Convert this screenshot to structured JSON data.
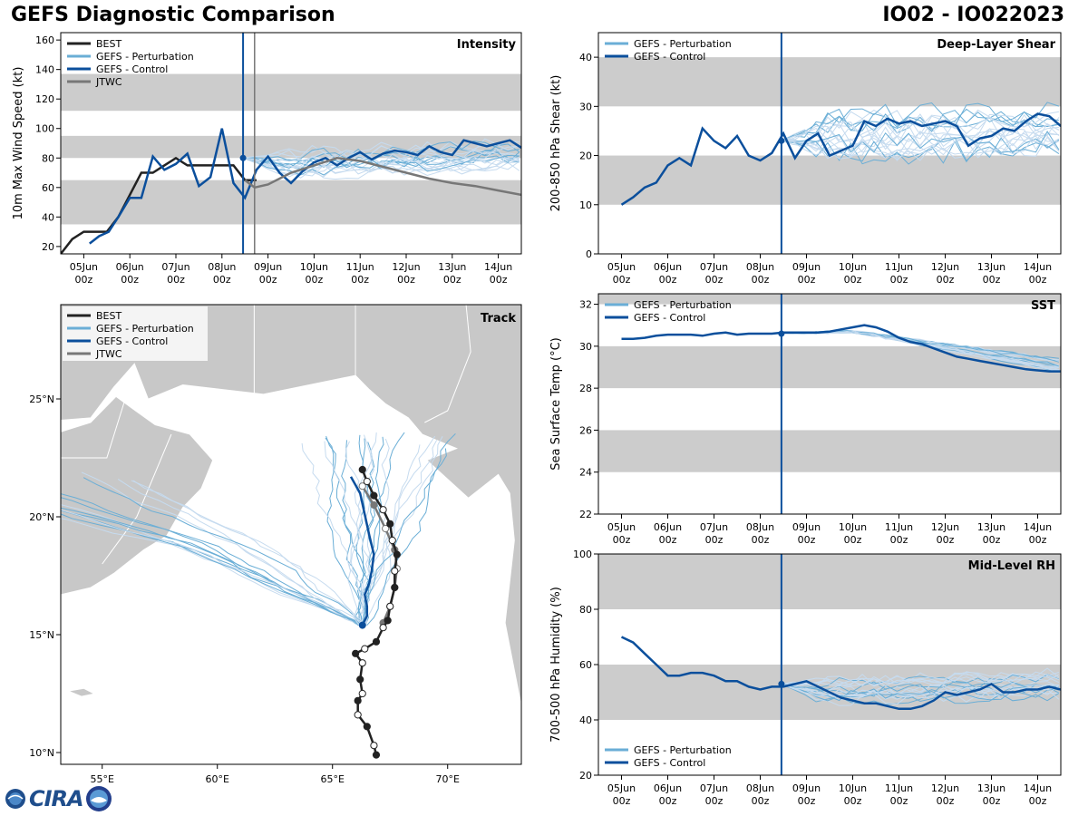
{
  "page": {
    "title_left": "GEFS Diagnostic Comparison",
    "title_right": "IO02 - IO022023",
    "logo_text": "CIRA"
  },
  "colors": {
    "best": "#222222",
    "perturbation": "#6aaed6",
    "perturbation_light": "#c6dbef",
    "control": "#0b4f9c",
    "jtwc": "#777777",
    "band": "#cccccc",
    "land": "#c8c8c8"
  },
  "time_axis": {
    "range": [
      0,
      240
    ],
    "init_hour": 95,
    "tick_hours": [
      12,
      36,
      60,
      84,
      108,
      132,
      156,
      180,
      204,
      228
    ],
    "tick_top": [
      "05Jun",
      "06Jun",
      "07Jun",
      "08Jun",
      "09Jun",
      "10Jun",
      "11Jun",
      "12Jun",
      "13Jun",
      "14Jun"
    ],
    "tick_bottom": [
      "00z",
      "00z",
      "00z",
      "00z",
      "00z",
      "00z",
      "00z",
      "00z",
      "00z",
      "00z"
    ]
  },
  "chart_data": [
    {
      "id": "intensity",
      "type": "line",
      "panel_title": "Intensity",
      "ylabel": "10m Max Wind Speed (kt)",
      "ylim": [
        15,
        165
      ],
      "yticks": [
        20,
        40,
        60,
        80,
        100,
        120,
        140,
        160
      ],
      "bands": [
        [
          35,
          65
        ],
        [
          80,
          95
        ],
        [
          112,
          137
        ]
      ],
      "legend": [
        "BEST",
        "GEFS - Perturbation",
        "GEFS - Control",
        "JTWC"
      ],
      "jtwc_time": 101,
      "series": [
        {
          "name": "BEST",
          "x": [
            0,
            6,
            12,
            18,
            24,
            30,
            36,
            42,
            48,
            54,
            60,
            66,
            72,
            78,
            84,
            90,
            96,
            102
          ],
          "y": [
            15,
            25,
            30,
            30,
            30,
            40,
            55,
            70,
            70,
            75,
            80,
            75,
            75,
            75,
            75,
            75,
            65,
            65
          ]
        },
        {
          "name": "GEFS - Control",
          "x": [
            15,
            20,
            25,
            30,
            36,
            42,
            48,
            54,
            60,
            66,
            72,
            78,
            84,
            90,
            96,
            102,
            108,
            114,
            120,
            126,
            132,
            138,
            144,
            150,
            156,
            162,
            168,
            174,
            180,
            186,
            192,
            198,
            204,
            210,
            216,
            222,
            228,
            234,
            240
          ],
          "y": [
            22,
            27,
            30,
            40,
            53,
            53,
            81,
            72,
            76,
            83,
            61,
            67,
            100,
            63,
            53,
            72,
            81,
            70,
            63,
            71,
            77,
            80,
            75,
            80,
            84,
            79,
            83,
            85,
            84,
            82,
            88,
            84,
            82,
            92,
            90,
            88,
            90,
            92,
            87
          ]
        },
        {
          "name": "JTWC",
          "x": [
            96,
            101,
            108,
            120,
            132,
            144,
            156,
            168,
            180,
            192,
            204,
            216,
            228,
            240
          ],
          "y": [
            65,
            60,
            62,
            70,
            75,
            80,
            78,
            74,
            70,
            66,
            63,
            61,
            58,
            55
          ]
        }
      ],
      "ensemble": {
        "members": 20,
        "start": 95,
        "start_value": 80,
        "center": 75,
        "drift": 0.05,
        "spread": 8,
        "noise": 9
      }
    },
    {
      "id": "shear",
      "type": "line",
      "panel_title": "Deep-Layer Shear",
      "ylabel": "200-850 hPa Shear (kt)",
      "ylim": [
        0,
        45
      ],
      "yticks": [
        0,
        10,
        20,
        30,
        40
      ],
      "bands": [
        [
          10,
          20
        ],
        [
          30,
          40
        ]
      ],
      "legend": [
        "GEFS - Perturbation",
        "GEFS - Control"
      ],
      "series": [
        {
          "name": "GEFS - Control",
          "x": [
            12,
            18,
            24,
            30,
            36,
            42,
            48,
            54,
            60,
            66,
            72,
            78,
            84,
            90,
            96,
            102,
            108,
            114,
            120,
            126,
            132,
            138,
            144,
            150,
            156,
            162,
            168,
            174,
            180,
            186,
            192,
            198,
            204,
            210,
            216,
            222,
            228,
            234,
            240
          ],
          "y": [
            10,
            11.5,
            13.5,
            14.5,
            18,
            19.5,
            18,
            25.5,
            23,
            21.5,
            24,
            20,
            19,
            20.5,
            24.5,
            19.5,
            23,
            24.5,
            20,
            21,
            22,
            27,
            26,
            27.5,
            26.5,
            27,
            26,
            26.5,
            27,
            26,
            22,
            23.5,
            24,
            25.5,
            25,
            27,
            28.5,
            28,
            26
          ]
        }
      ],
      "ensemble": {
        "members": 20,
        "start": 95,
        "start_value": 23,
        "center": 24,
        "drift": 0.01,
        "spread": 4,
        "noise": 5
      }
    },
    {
      "id": "sst",
      "type": "line",
      "panel_title": "SST",
      "ylabel": "Sea Surface Temp (°C)",
      "ylim": [
        22,
        32.5
      ],
      "yticks": [
        22,
        24,
        26,
        28,
        30,
        32
      ],
      "bands": [
        [
          24,
          26
        ],
        [
          28,
          30
        ],
        [
          32,
          32.5
        ]
      ],
      "legend": [
        "GEFS - Perturbation",
        "GEFS - Control"
      ],
      "series": [
        {
          "name": "GEFS - Control",
          "x": [
            12,
            18,
            24,
            30,
            36,
            42,
            48,
            54,
            60,
            66,
            72,
            78,
            84,
            90,
            96,
            102,
            108,
            114,
            120,
            126,
            132,
            138,
            144,
            150,
            156,
            162,
            168,
            174,
            180,
            186,
            192,
            198,
            204,
            210,
            216,
            222,
            228,
            234,
            240
          ],
          "y": [
            30.35,
            30.35,
            30.4,
            30.5,
            30.55,
            30.55,
            30.55,
            30.5,
            30.6,
            30.65,
            30.55,
            30.6,
            30.6,
            30.6,
            30.65,
            30.65,
            30.65,
            30.65,
            30.7,
            30.8,
            30.9,
            31.0,
            30.9,
            30.7,
            30.4,
            30.2,
            30.1,
            29.9,
            29.7,
            29.5,
            29.4,
            29.3,
            29.2,
            29.1,
            29.0,
            28.9,
            28.85,
            28.8,
            28.8
          ]
        }
      ],
      "ensemble": {
        "members": 20,
        "start": 95,
        "start_value": 30.6,
        "center": 30.6,
        "drift": -0.0145,
        "spread": 0.35,
        "noise": 0.15,
        "flat_until": 132
      }
    },
    {
      "id": "rh",
      "type": "line",
      "panel_title": "Mid-Level RH",
      "ylabel": "700-500 hPa Humidity (%)",
      "ylim": [
        20,
        100
      ],
      "yticks": [
        20,
        40,
        60,
        80,
        100
      ],
      "bands": [
        [
          40,
          60
        ],
        [
          80,
          100
        ]
      ],
      "legend": [
        "GEFS - Perturbation",
        "GEFS - Control"
      ],
      "series": [
        {
          "name": "GEFS - Control",
          "x": [
            12,
            18,
            24,
            30,
            36,
            42,
            48,
            54,
            60,
            66,
            72,
            78,
            84,
            90,
            96,
            102,
            108,
            114,
            120,
            126,
            132,
            138,
            144,
            150,
            156,
            162,
            168,
            174,
            180,
            186,
            192,
            198,
            204,
            210,
            216,
            222,
            228,
            234,
            240
          ],
          "y": [
            70,
            68,
            64,
            60,
            56,
            56,
            57,
            57,
            56,
            54,
            54,
            52,
            51,
            52,
            52,
            53,
            54,
            52,
            50,
            48,
            47,
            46,
            46,
            45,
            44,
            44,
            45,
            47,
            50,
            49,
            50,
            51,
            53,
            50,
            50,
            51,
            51,
            52,
            51
          ]
        }
      ],
      "ensemble": {
        "members": 20,
        "start": 95,
        "start_value": 53,
        "center": 50,
        "drift": 0.02,
        "spread": 4,
        "noise": 4
      }
    },
    {
      "id": "track",
      "type": "scatter",
      "panel_title": "Track",
      "legend": [
        "BEST",
        "GEFS - Perturbation",
        "GEFS - Control",
        "JTWC"
      ],
      "lon_range": [
        53.2,
        73.2
      ],
      "lat_range": [
        9.5,
        29
      ],
      "lon_ticks": [
        55,
        60,
        65,
        70
      ],
      "lon_labels": [
        "55°E",
        "60°E",
        "65°E",
        "70°E"
      ],
      "lat_ticks": [
        10,
        15,
        20,
        25
      ],
      "lat_labels": [
        "10°N",
        "15°N",
        "20°N",
        "25°N"
      ],
      "best_track": [
        [
          66.9,
          9.9
        ],
        [
          66.8,
          10.3
        ],
        [
          66.5,
          11.1
        ],
        [
          66.1,
          11.6
        ],
        [
          66.1,
          12.2
        ],
        [
          66.3,
          12.5
        ],
        [
          66.2,
          13.1
        ],
        [
          66.3,
          13.8
        ],
        [
          66.0,
          14.2
        ],
        [
          66.4,
          14.4
        ],
        [
          66.9,
          14.7
        ],
        [
          67.2,
          15.3
        ],
        [
          67.4,
          15.6
        ],
        [
          67.5,
          16.2
        ],
        [
          67.7,
          17.0
        ],
        [
          67.7,
          17.7
        ],
        [
          67.8,
          18.4
        ],
        [
          67.6,
          19.0
        ],
        [
          67.5,
          19.7
        ],
        [
          67.2,
          20.3
        ],
        [
          66.8,
          20.9
        ],
        [
          66.5,
          21.5
        ],
        [
          66.3,
          22.0
        ]
      ],
      "control_track": [
        [
          66.3,
          15.4
        ],
        [
          66.5,
          15.8
        ],
        [
          66.5,
          16.2
        ],
        [
          66.4,
          16.7
        ],
        [
          66.6,
          17.2
        ],
        [
          66.7,
          17.7
        ],
        [
          66.8,
          18.4
        ],
        [
          66.6,
          19.2
        ],
        [
          66.4,
          20.1
        ],
        [
          66.2,
          21.0
        ],
        [
          65.8,
          21.7
        ]
      ],
      "jtwc_track": [
        [
          67.2,
          15.5
        ],
        [
          67.5,
          16.2
        ],
        [
          67.7,
          17.0
        ],
        [
          67.8,
          17.8
        ],
        [
          67.7,
          18.6
        ],
        [
          67.3,
          19.5
        ],
        [
          66.8,
          20.5
        ],
        [
          66.3,
          21.3
        ]
      ],
      "ensemble_members": 34
    }
  ]
}
